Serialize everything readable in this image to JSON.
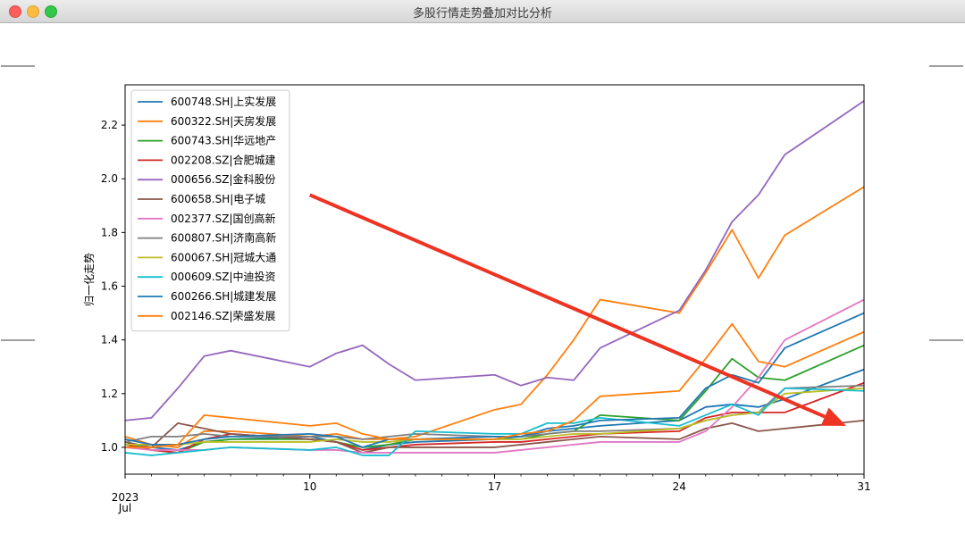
{
  "window": {
    "title": "多股行情走势叠加对比分析"
  },
  "chart_data": {
    "type": "line",
    "ylabel": "归一化走势",
    "xlabel": "",
    "ylim": [
      0.9,
      2.35
    ],
    "yticks": [
      1.0,
      1.2,
      1.4,
      1.6,
      1.8,
      2.0,
      2.2
    ],
    "ytick_labels": [
      "1.0",
      "1.2",
      "1.4",
      "1.6",
      "1.8",
      "2.0",
      "2.2"
    ],
    "x_dates": [
      "2023-07-03",
      "2023-07-04",
      "2023-07-05",
      "2023-07-06",
      "2023-07-07",
      "2023-07-10",
      "2023-07-11",
      "2023-07-12",
      "2023-07-13",
      "2023-07-14",
      "2023-07-17",
      "2023-07-18",
      "2023-07-19",
      "2023-07-20",
      "2023-07-21",
      "2023-07-24",
      "2023-07-25",
      "2023-07-26",
      "2023-07-27",
      "2023-07-28",
      "2023-07-31"
    ],
    "xlim": [
      "2023-07-03",
      "2023-07-31"
    ],
    "xticks": [
      {
        "date": "2023-07-03",
        "label": "Jul\n2023"
      },
      {
        "date": "2023-07-10",
        "label": "10"
      },
      {
        "date": "2023-07-17",
        "label": "17"
      },
      {
        "date": "2023-07-24",
        "label": "24"
      },
      {
        "date": "2023-07-31",
        "label": "31"
      }
    ],
    "legend_position": "upper-left",
    "series": [
      {
        "name": "600748.SH|上实发展",
        "color": "#1f77b4",
        "values": [
          1.01,
          1.0,
          0.99,
          1.02,
          1.03,
          1.04,
          1.02,
          0.99,
          1.01,
          1.02,
          1.03,
          1.04,
          1.06,
          1.07,
          1.08,
          1.1,
          1.15,
          1.16,
          1.15,
          1.18,
          1.29
        ]
      },
      {
        "name": "600322.SH|天房发展",
        "color": "#ff7f0e",
        "values": [
          1.04,
          1.01,
          1.0,
          1.06,
          1.06,
          1.04,
          1.05,
          1.03,
          1.03,
          1.04,
          1.14,
          1.16,
          1.27,
          1.4,
          1.55,
          1.5,
          1.65,
          1.81,
          1.63,
          1.79,
          1.97
        ]
      },
      {
        "name": "600743.SH|华远地产",
        "color": "#2ca02c",
        "values": [
          1.02,
          0.99,
          0.98,
          1.02,
          1.03,
          1.03,
          1.02,
          1.0,
          1.01,
          1.03,
          1.03,
          1.03,
          1.05,
          1.06,
          1.12,
          1.1,
          1.21,
          1.33,
          1.26,
          1.25,
          1.38
        ]
      },
      {
        "name": "002208.SZ|合肥城建",
        "color": "#d62728",
        "values": [
          1.01,
          0.99,
          0.98,
          1.03,
          1.05,
          1.03,
          1.02,
          0.99,
          1.0,
          1.01,
          1.02,
          1.02,
          1.03,
          1.04,
          1.05,
          1.06,
          1.11,
          1.13,
          1.13,
          1.13,
          1.24
        ]
      },
      {
        "name": "000656.SZ|金科股份",
        "color": "#9467bd",
        "values": [
          1.1,
          1.11,
          1.22,
          1.34,
          1.36,
          1.3,
          1.35,
          1.38,
          1.31,
          1.25,
          1.27,
          1.23,
          1.26,
          1.25,
          1.37,
          1.51,
          1.66,
          1.84,
          1.94,
          2.09,
          2.29
        ]
      },
      {
        "name": "600658.SH|电子城",
        "color": "#8c564b",
        "values": [
          1.02,
          1.0,
          1.09,
          1.07,
          1.05,
          1.03,
          1.02,
          0.98,
          1.0,
          1.0,
          1.0,
          1.01,
          1.02,
          1.03,
          1.04,
          1.03,
          1.07,
          1.09,
          1.06,
          1.07,
          1.1
        ]
      },
      {
        "name": "002377.SZ|国创高新",
        "color": "#e377c2",
        "values": [
          1.0,
          0.99,
          0.99,
          0.99,
          1.0,
          0.99,
          0.99,
          0.98,
          0.98,
          0.98,
          0.98,
          0.99,
          1.0,
          1.01,
          1.02,
          1.02,
          1.06,
          1.15,
          1.26,
          1.4,
          1.55
        ]
      },
      {
        "name": "600807.SH|济南高新",
        "color": "#7f7f7f",
        "values": [
          1.02,
          1.04,
          1.04,
          1.05,
          1.04,
          1.04,
          1.04,
          1.03,
          1.04,
          1.05,
          1.04,
          1.04,
          1.05,
          1.06,
          1.06,
          1.07,
          1.1,
          1.12,
          1.13,
          1.22,
          1.23
        ]
      },
      {
        "name": "600067.SH|冠城大通",
        "color": "#bcbd22",
        "values": [
          1.01,
          1.01,
          1.01,
          1.02,
          1.02,
          1.02,
          1.03,
          1.02,
          1.02,
          1.03,
          1.03,
          1.03,
          1.04,
          1.05,
          1.05,
          1.07,
          1.1,
          1.12,
          1.13,
          1.2,
          1.22
        ]
      },
      {
        "name": "000609.SZ|中迪投资",
        "color": "#17becf",
        "values": [
          0.98,
          0.97,
          0.98,
          0.99,
          1.0,
          0.99,
          1.0,
          0.97,
          0.97,
          1.06,
          1.05,
          1.05,
          1.09,
          1.09,
          1.11,
          1.08,
          1.12,
          1.16,
          1.12,
          1.22,
          1.21
        ]
      },
      {
        "name": "600266.SH|城建发展",
        "color": "#1f77b4",
        "values": [
          1.03,
          1.01,
          1.01,
          1.03,
          1.04,
          1.05,
          1.04,
          1.0,
          1.03,
          1.03,
          1.04,
          1.04,
          1.07,
          1.08,
          1.1,
          1.11,
          1.22,
          1.27,
          1.24,
          1.37,
          1.5
        ]
      },
      {
        "name": "002146.SZ|荣盛发展",
        "color": "#ff7f0e",
        "values": [
          1.0,
          1.0,
          1.01,
          1.12,
          1.11,
          1.08,
          1.09,
          1.05,
          1.03,
          1.03,
          1.03,
          1.05,
          1.06,
          1.1,
          1.19,
          1.21,
          1.33,
          1.46,
          1.32,
          1.3,
          1.43
        ]
      }
    ],
    "annotation": {
      "type": "arrow",
      "color": "#ee3322",
      "from": {
        "date": "2023-07-10",
        "value": 1.94
      },
      "to": {
        "date": "2023-07-31",
        "value": 1.08
      }
    }
  }
}
